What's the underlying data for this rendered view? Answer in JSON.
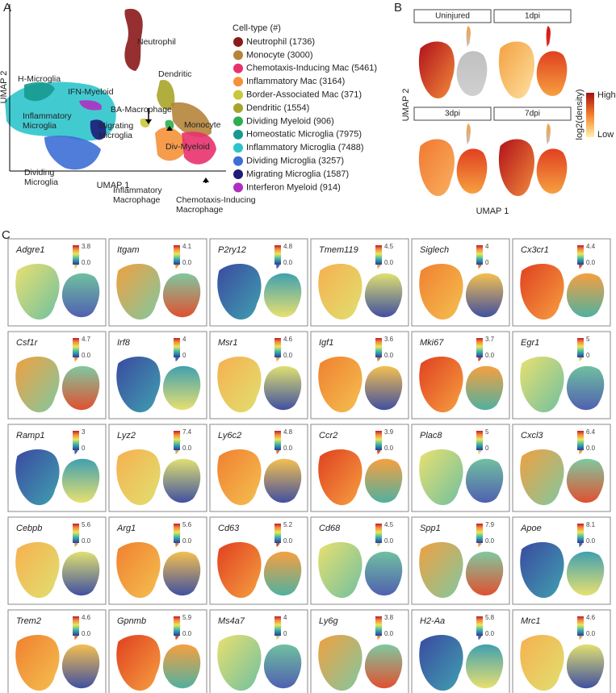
{
  "panel_a": {
    "letter": "A",
    "x_label": "UMAP 1",
    "y_label": "UMAP 2",
    "legend_title": "Cell-type (#)",
    "legend": [
      {
        "label": "Neutrophil (1736)",
        "color": "#8b1a1a"
      },
      {
        "label": "Monocyte (3000)",
        "color": "#b5843a"
      },
      {
        "label": "Chemotaxis-Inducing Mac (5461)",
        "color": "#e8326e"
      },
      {
        "label": "Inflammatory Mac (3164)",
        "color": "#f5913a"
      },
      {
        "label": "Border-Associated Mac (371)",
        "color": "#c9c83a"
      },
      {
        "label": "Dendritic (1554)",
        "color": "#a8a42a"
      },
      {
        "label": "Dividing Myeloid (906)",
        "color": "#2eae4e"
      },
      {
        "label": "Homeostatic Microglia (7975)",
        "color": "#17998f"
      },
      {
        "label": "Inflammatory Microglia (7488)",
        "color": "#2ec4cc"
      },
      {
        "label": "Dividing Microglia (3257)",
        "color": "#3d6fd6"
      },
      {
        "label": "Migrating Microglia (1587)",
        "color": "#1c1c7a"
      },
      {
        "label": "Interferon Myeloid (914)",
        "color": "#b030c0"
      }
    ],
    "annotations": [
      {
        "lines": [
          "Neutrophil"
        ]
      },
      {
        "lines": [
          "Dendritic"
        ]
      },
      {
        "lines": [
          "H-Microglia"
        ]
      },
      {
        "lines": [
          "IFN-Myeloid"
        ]
      },
      {
        "lines": [
          "BA-Macrophage"
        ]
      },
      {
        "lines": [
          "Inflammatory",
          "Microglia"
        ]
      },
      {
        "lines": [
          "Migrating",
          "Microglia"
        ]
      },
      {
        "lines": [
          "Monocyte"
        ]
      },
      {
        "lines": [
          "Div-Myeloid"
        ]
      },
      {
        "lines": [
          "Dividing",
          "Microglia"
        ]
      },
      {
        "lines": [
          "Inflammatory",
          "Macrophage"
        ]
      },
      {
        "lines": [
          "Chemotaxis-Inducing",
          "Macrophage"
        ]
      }
    ]
  },
  "panel_b": {
    "letter": "B",
    "x_label": "UMAP 1",
    "y_label": "UMAP 2",
    "facets": [
      "Uninjured",
      "1dpi",
      "3dpi",
      "7dpi"
    ],
    "colorbar_title": "log2(density)",
    "colorbar_high": "High",
    "colorbar_low": "Low"
  },
  "panel_c": {
    "letter": "C",
    "genes": [
      {
        "name": "Adgre1",
        "max": "3.8",
        "min": "0.0"
      },
      {
        "name": "Itgam",
        "max": "4.1",
        "min": "0.0"
      },
      {
        "name": "P2ry12",
        "max": "4.8",
        "min": "0.0"
      },
      {
        "name": "Tmem119",
        "max": "4.5",
        "min": "0.0"
      },
      {
        "name": "Siglech",
        "max": "4",
        "min": "0"
      },
      {
        "name": "Cx3cr1",
        "max": "4.4",
        "min": "0.0"
      },
      {
        "name": "Csf1r",
        "max": "4.7",
        "min": "0.0"
      },
      {
        "name": "Irf8",
        "max": "4",
        "min": "0"
      },
      {
        "name": "Msr1",
        "max": "4.6",
        "min": "0.0"
      },
      {
        "name": "Igf1",
        "max": "3.6",
        "min": "0.0"
      },
      {
        "name": "Mki67",
        "max": "3.7",
        "min": "0.0"
      },
      {
        "name": "Egr1",
        "max": "5",
        "min": "0"
      },
      {
        "name": "Ramp1",
        "max": "3",
        "min": "0"
      },
      {
        "name": "Lyz2",
        "max": "7.4",
        "min": "0.0"
      },
      {
        "name": "Ly6c2",
        "max": "4.8",
        "min": "0.0"
      },
      {
        "name": "Ccr2",
        "max": "3.9",
        "min": "0.0"
      },
      {
        "name": "Plac8",
        "max": "5",
        "min": "0"
      },
      {
        "name": "Cxcl3",
        "max": "6.4",
        "min": "0.0"
      },
      {
        "name": "Cebpb",
        "max": "5.6",
        "min": "0.0"
      },
      {
        "name": "Arg1",
        "max": "5.6",
        "min": "0.0"
      },
      {
        "name": "Cd63",
        "max": "5.2",
        "min": "0.0"
      },
      {
        "name": "Cd68",
        "max": "4.5",
        "min": "0.0"
      },
      {
        "name": "Spp1",
        "max": "7.9",
        "min": "0.0"
      },
      {
        "name": "Apoe",
        "max": "8.1",
        "min": "0.0"
      },
      {
        "name": "Trem2",
        "max": "4.6",
        "min": "0.0"
      },
      {
        "name": "Gpnmb",
        "max": "5.9",
        "min": "0.0"
      },
      {
        "name": "Ms4a7",
        "max": "4",
        "min": "0"
      },
      {
        "name": "Ly6g",
        "max": "3.8",
        "min": "0.0"
      },
      {
        "name": "H2-Aa",
        "max": "5.8",
        "min": "0.0"
      },
      {
        "name": "Mrc1",
        "max": "4.6",
        "min": "0.0"
      }
    ]
  }
}
